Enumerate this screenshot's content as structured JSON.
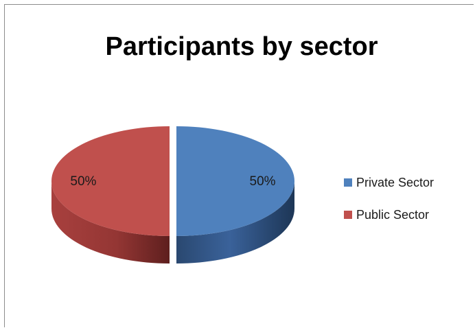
{
  "chart_data": {
    "type": "pie",
    "title": "Participants by sector",
    "series": [
      {
        "name": "",
        "values": [
          50,
          50
        ],
        "data_labels": [
          "50%",
          "50%"
        ]
      }
    ],
    "categories": [
      "Private Sector",
      "Public Sector"
    ],
    "colors": [
      "#4f81bd",
      "#c0504d"
    ],
    "style": "3d-exploded",
    "legend_position": "right"
  }
}
